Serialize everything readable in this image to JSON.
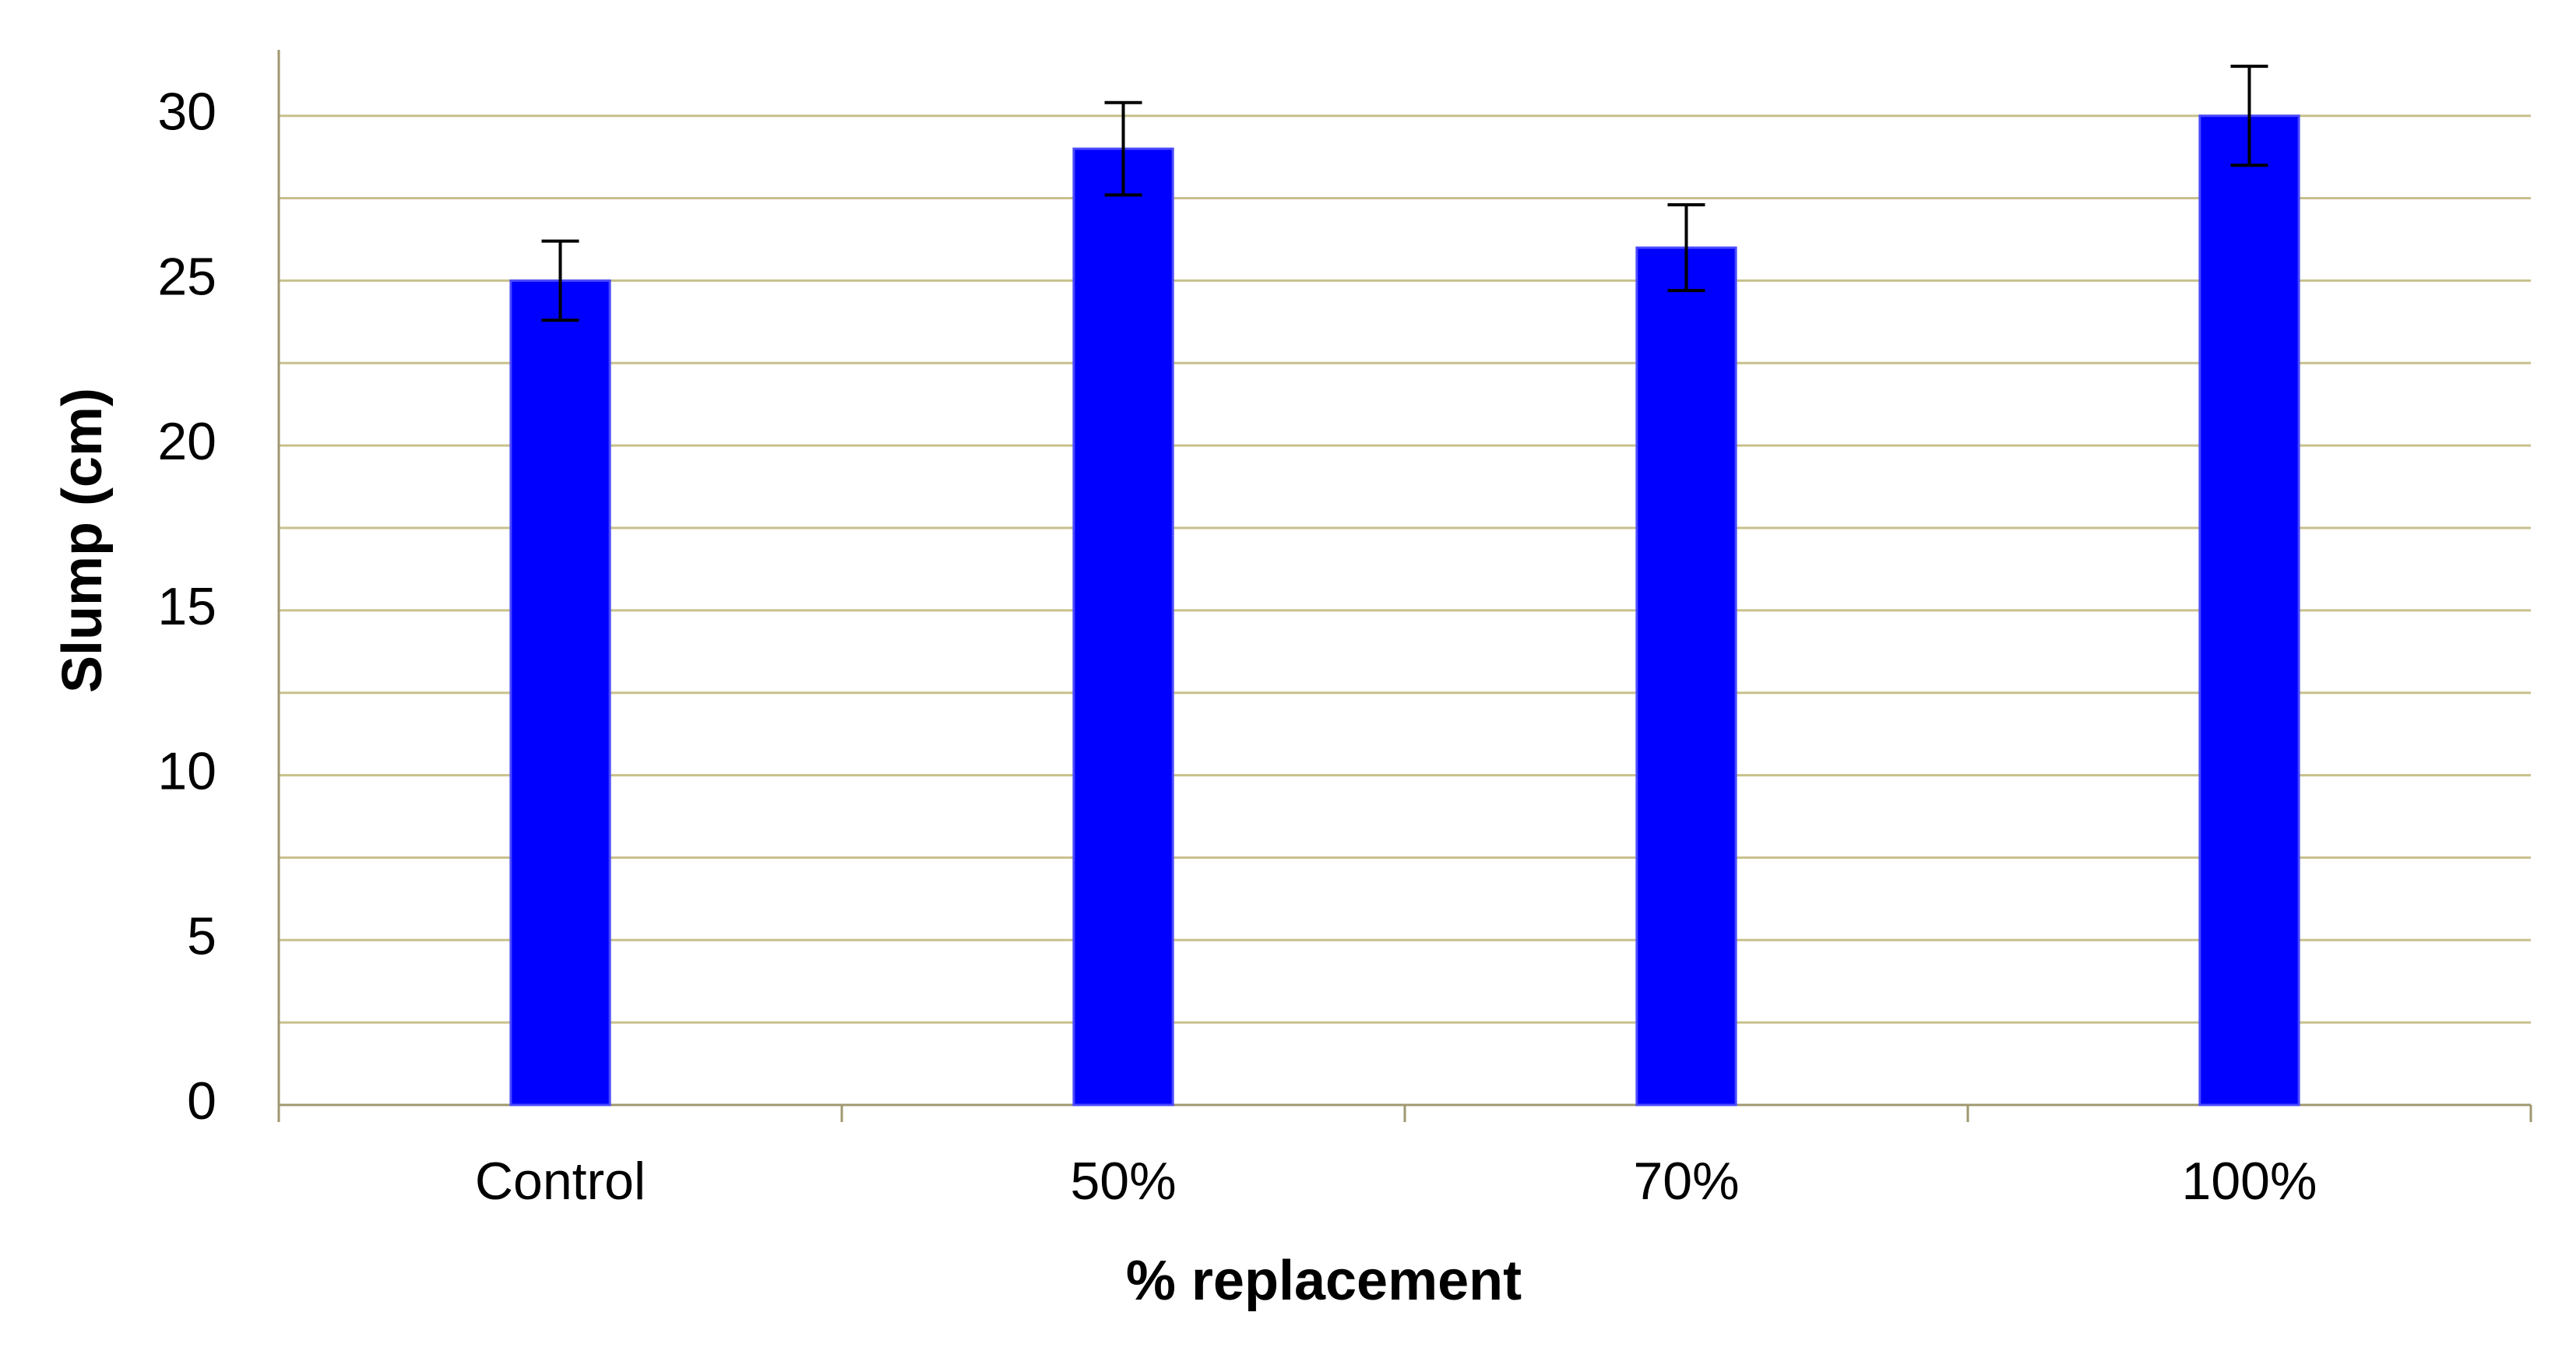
{
  "chart_data": {
    "type": "bar",
    "x_label": "% replacement",
    "y_label": "Slump (cm)",
    "categories": [
      "Control",
      "50%",
      "70%",
      "100%"
    ],
    "values": [
      25,
      29,
      26,
      30
    ],
    "errors": [
      1.2,
      1.4,
      1.3,
      1.5
    ],
    "color": "#0000ff",
    "ylim": [
      0,
      32
    ],
    "yticks": [
      0,
      5,
      10,
      15,
      20,
      25,
      30
    ],
    "minor_yticks": [
      2.5,
      7.5,
      12.5,
      17.5,
      22.5,
      27.5
    ],
    "grid": true,
    "grid_color": "#c8c08c"
  }
}
